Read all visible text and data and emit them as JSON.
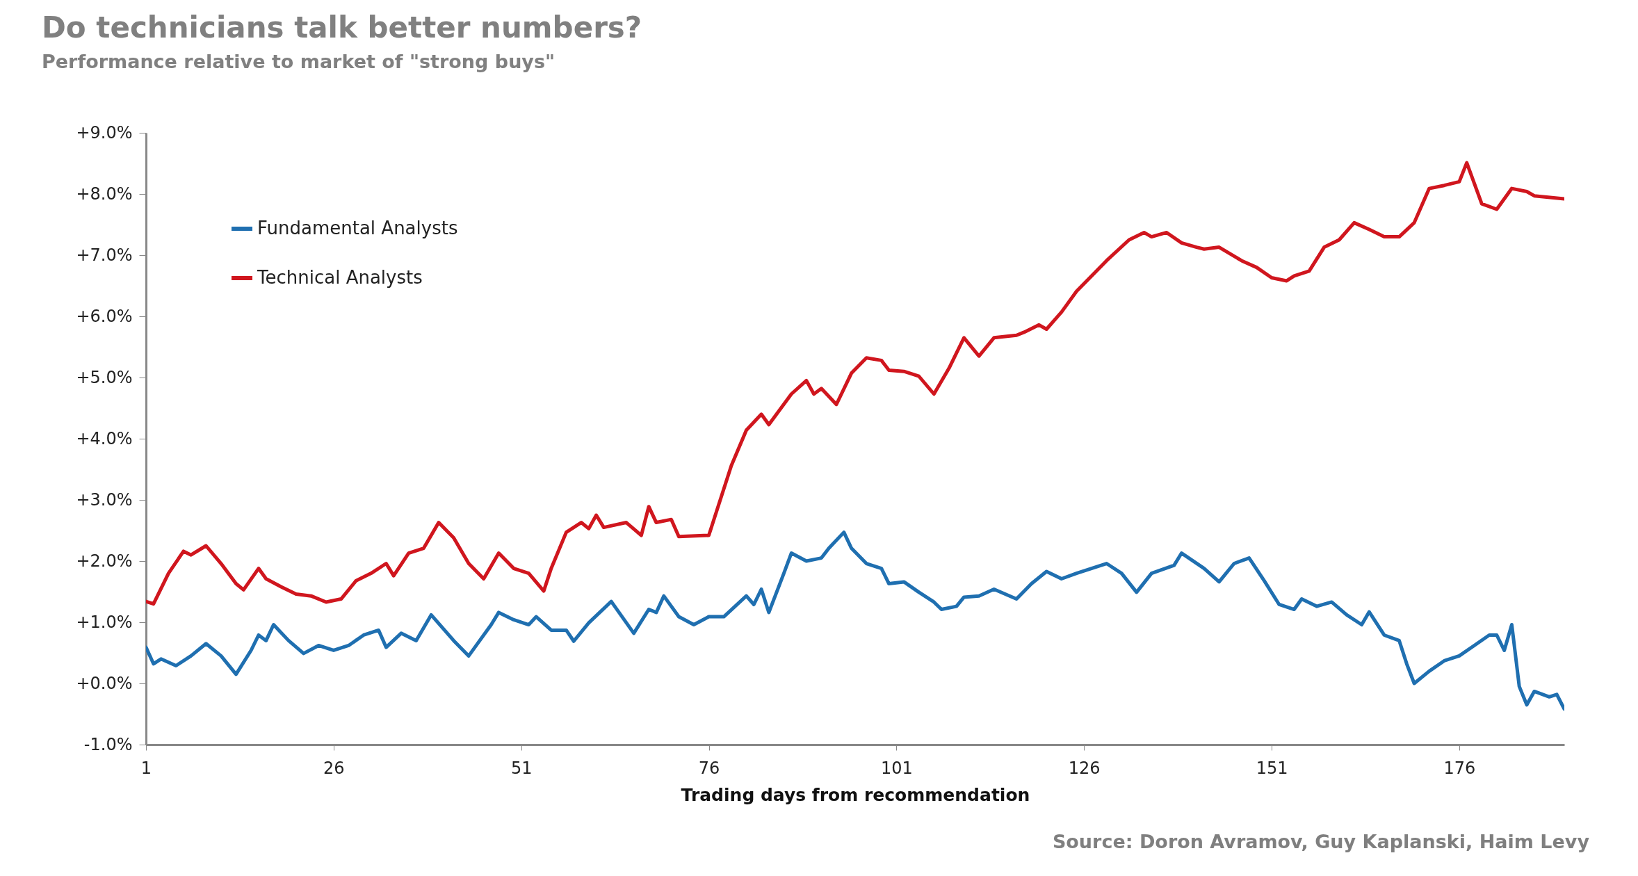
{
  "chart_data": {
    "type": "line",
    "title": "Do technicians talk better numbers?",
    "subtitle": "Performance relative to market of \"strong buys\"",
    "xlabel": "Trading days from recommendation",
    "annotations": [
      "Source:  Doron Avramov, Guy Kaplanski, Haim Levy"
    ],
    "xlim": [
      1,
      190
    ],
    "xticks": [
      1,
      26,
      51,
      76,
      101,
      126,
      151,
      176
    ],
    "ylim": [
      -1,
      9
    ],
    "yticks": [
      {
        "value": -1,
        "label": "-1.0%"
      },
      {
        "value": 0,
        "label": "+0.0%"
      },
      {
        "value": 1,
        "label": "+1.0%"
      },
      {
        "value": 2,
        "label": "+2.0%"
      },
      {
        "value": 3,
        "label": "+3.0%"
      },
      {
        "value": 4,
        "label": "+4.0%"
      },
      {
        "value": 5,
        "label": "+5.0%"
      },
      {
        "value": 6,
        "label": "+6.0%"
      },
      {
        "value": 7,
        "label": "+7.0%"
      },
      {
        "value": 8,
        "label": "+8.0%"
      },
      {
        "value": 9,
        "label": "+9.0%"
      }
    ],
    "grid": false,
    "legend": "top left",
    "marker": "none",
    "line_style": "solid",
    "series": [
      {
        "name": "Fundamental Analysts",
        "color": "#1f6fb0",
        "x": [
          1,
          2,
          3,
          5,
          7,
          9,
          11,
          13,
          15,
          16,
          17,
          18,
          20,
          22,
          24,
          26,
          28,
          30,
          32,
          33,
          35,
          37,
          39,
          42,
          44,
          47,
          48,
          50,
          52,
          53,
          55,
          57,
          58,
          60,
          63,
          66,
          68,
          69,
          70,
          72,
          74,
          76,
          78,
          81,
          82,
          83,
          84,
          86,
          87,
          89,
          91,
          92,
          94,
          95,
          97,
          99,
          100,
          102,
          104,
          106,
          107,
          109,
          110,
          112,
          114,
          117,
          119,
          121,
          123,
          125,
          127,
          129,
          131,
          133,
          135,
          138,
          139,
          142,
          144,
          146,
          148,
          150,
          152,
          154,
          155,
          157,
          159,
          161,
          163,
          164,
          166,
          168,
          169,
          170,
          172,
          174,
          176,
          178,
          180,
          181,
          182,
          183,
          184,
          185,
          186,
          188,
          189,
          190
        ],
        "values": [
          0.59,
          0.32,
          0.4,
          0.29,
          0.45,
          0.65,
          0.45,
          0.15,
          0.54,
          0.79,
          0.7,
          0.96,
          0.7,
          0.49,
          0.62,
          0.54,
          0.62,
          0.79,
          0.87,
          0.59,
          0.82,
          0.7,
          1.12,
          0.7,
          0.45,
          0.96,
          1.16,
          1.04,
          0.96,
          1.09,
          0.87,
          0.87,
          0.69,
          0.99,
          1.34,
          0.82,
          1.21,
          1.16,
          1.43,
          1.09,
          0.96,
          1.09,
          1.09,
          1.43,
          1.29,
          1.54,
          1.16,
          1.8,
          2.13,
          2.0,
          2.05,
          2.21,
          2.47,
          2.21,
          1.96,
          1.88,
          1.63,
          1.66,
          1.49,
          1.33,
          1.21,
          1.26,
          1.41,
          1.43,
          1.54,
          1.38,
          1.63,
          1.83,
          1.71,
          1.8,
          1.88,
          1.96,
          1.8,
          1.49,
          1.8,
          1.93,
          2.13,
          1.88,
          1.66,
          1.96,
          2.05,
          1.68,
          1.29,
          1.21,
          1.38,
          1.26,
          1.33,
          1.12,
          0.96,
          1.17,
          0.79,
          0.7,
          0.32,
          0.0,
          0.2,
          0.37,
          0.45,
          0.62,
          0.79,
          0.79,
          0.54,
          0.96,
          -0.05,
          -0.35,
          -0.13,
          -0.22,
          -0.18,
          -0.42
        ]
      },
      {
        "name": "Technical Analysts",
        "color": "#d0161e",
        "x": [
          1,
          2,
          4,
          6,
          7,
          9,
          11,
          13,
          14,
          16,
          17,
          19,
          21,
          23,
          25,
          27,
          29,
          31,
          33,
          34,
          36,
          38,
          40,
          42,
          44,
          46,
          48,
          50,
          52,
          54,
          55,
          57,
          59,
          60,
          61,
          62,
          65,
          67,
          68,
          69,
          71,
          72,
          76,
          77,
          79,
          81,
          83,
          84,
          87,
          89,
          90,
          91,
          93,
          95,
          97,
          99,
          100,
          102,
          104,
          106,
          108,
          110,
          112,
          114,
          117,
          118,
          120,
          121,
          123,
          125,
          127,
          129,
          132,
          134,
          135,
          137,
          139,
          141,
          142,
          144,
          147,
          149,
          151,
          153,
          154,
          156,
          158,
          160,
          162,
          164,
          166,
          168,
          170,
          172,
          174,
          176,
          177,
          179,
          181,
          183,
          185,
          186,
          190
        ],
        "values": [
          1.34,
          1.3,
          1.8,
          2.16,
          2.1,
          2.25,
          1.96,
          1.63,
          1.53,
          1.88,
          1.71,
          1.58,
          1.46,
          1.43,
          1.33,
          1.38,
          1.68,
          1.8,
          1.96,
          1.76,
          2.13,
          2.21,
          2.63,
          2.38,
          1.96,
          1.71,
          2.13,
          1.88,
          1.8,
          1.51,
          1.88,
          2.47,
          2.63,
          2.53,
          2.75,
          2.55,
          2.63,
          2.42,
          2.89,
          2.63,
          2.68,
          2.4,
          2.42,
          2.8,
          3.56,
          4.14,
          4.4,
          4.23,
          4.73,
          4.95,
          4.73,
          4.82,
          4.56,
          5.07,
          5.32,
          5.28,
          5.12,
          5.1,
          5.02,
          4.73,
          5.15,
          5.65,
          5.35,
          5.65,
          5.69,
          5.74,
          5.86,
          5.79,
          6.07,
          6.41,
          6.66,
          6.91,
          7.25,
          7.37,
          7.3,
          7.37,
          7.2,
          7.13,
          7.1,
          7.13,
          6.91,
          6.8,
          6.63,
          6.58,
          6.66,
          6.74,
          7.13,
          7.25,
          7.53,
          7.42,
          7.3,
          7.3,
          7.53,
          8.09,
          8.14,
          8.2,
          8.51,
          7.84,
          7.75,
          8.09,
          8.04,
          7.97,
          7.92
        ]
      }
    ]
  }
}
